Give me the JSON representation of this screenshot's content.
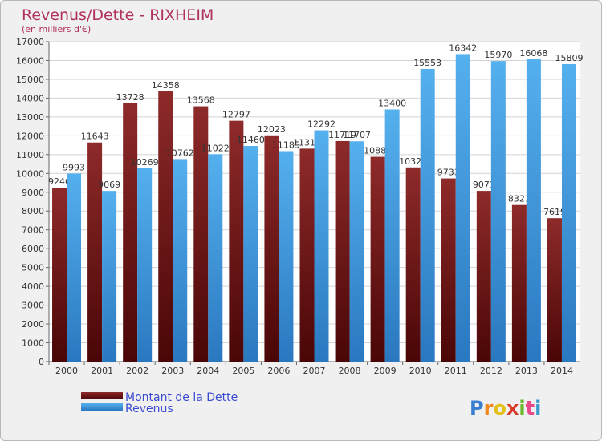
{
  "chart_data": {
    "type": "bar",
    "title": "Revenus/Dette - RIXHEIM",
    "subtitle": "(en milliers d'€)",
    "categories": [
      "2000",
      "2001",
      "2002",
      "2003",
      "2004",
      "2005",
      "2006",
      "2007",
      "2008",
      "2009",
      "2010",
      "2011",
      "2012",
      "2013",
      "2014"
    ],
    "series": [
      {
        "name": "Montant de la Dette",
        "color": "#7a1c1c",
        "values": [
          9246,
          11643,
          13728,
          14358,
          13568,
          12797,
          12023,
          11317,
          11719,
          10883,
          10320,
          9733,
          9071,
          8321,
          7619
        ]
      },
      {
        "name": "Revenus",
        "color": "#3399dd",
        "values": [
          9993,
          9069,
          10269,
          10762,
          11022,
          11460,
          11185,
          12292,
          11707,
          13400,
          15553,
          16342,
          15970,
          16068,
          15809
        ]
      }
    ],
    "ylim": [
      0,
      17000
    ],
    "yticks": [
      0,
      1000,
      2000,
      3000,
      4000,
      5000,
      6000,
      7000,
      8000,
      9000,
      10000,
      11000,
      12000,
      13000,
      14000,
      15000,
      16000,
      17000
    ],
    "grid": true,
    "legend": "bottom-left"
  },
  "logo": {
    "text": "Proxiti"
  }
}
